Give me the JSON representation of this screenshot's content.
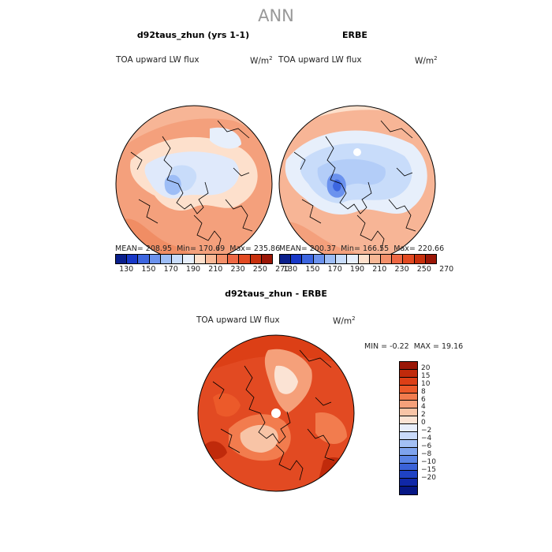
{
  "title": "ANN",
  "panels": [
    {
      "title": "d92taus_zhun (yrs 1-1)",
      "variable": "TOA upward LW flux",
      "units_base": "W/m",
      "units_exp": "2",
      "stats": {
        "mean_label": "MEAN=",
        "mean": "208.95",
        "min_label": "Min=",
        "min": "170.69",
        "max_label": "Max=",
        "max": "235.86"
      }
    },
    {
      "title": "ERBE",
      "variable": "TOA upward LW flux",
      "units_base": "W/m",
      "units_exp": "2",
      "stats": {
        "mean_label": "MEAN=",
        "mean": "200.37",
        "min_label": "Min=",
        "min": "166.55",
        "max_label": "Max=",
        "max": "220.66"
      }
    }
  ],
  "colorbar_top": {
    "colors": [
      "#0a1f8c",
      "#1838c8",
      "#3d66e0",
      "#6b92ee",
      "#9dbdf6",
      "#c8dcfa",
      "#e7effb",
      "#fde0cc",
      "#f8b896",
      "#f4906a",
      "#ee6844",
      "#e24a22",
      "#c8300d",
      "#9a1606"
    ],
    "labels": [
      "130",
      "150",
      "170",
      "190",
      "210",
      "230",
      "250",
      "270"
    ]
  },
  "difference": {
    "title": "d92taus_zhun - ERBE",
    "variable": "TOA upward LW flux",
    "units_base": "W/m",
    "units_exp": "2",
    "stats": {
      "min_label": "MIN =",
      "min": "-0.22",
      "max_label": "MAX =",
      "max": "19.16"
    },
    "colorbar": {
      "colors": [
        "#9a1606",
        "#c02a0b",
        "#dc3f16",
        "#ec5a2a",
        "#f27c4e",
        "#f5a07a",
        "#f8c4a6",
        "#fbe3d4",
        "#e8eefb",
        "#c9dafa",
        "#a3c0f5",
        "#7ea3ee",
        "#5a84e6",
        "#3a62d8",
        "#1f42c4",
        "#1028a8",
        "#061785"
      ],
      "labels": [
        "20",
        "15",
        "10",
        "8",
        "6",
        "4",
        "2",
        "0",
        "−2",
        "−4",
        "−6",
        "−8",
        "−10",
        "−15",
        "−20"
      ]
    }
  }
}
